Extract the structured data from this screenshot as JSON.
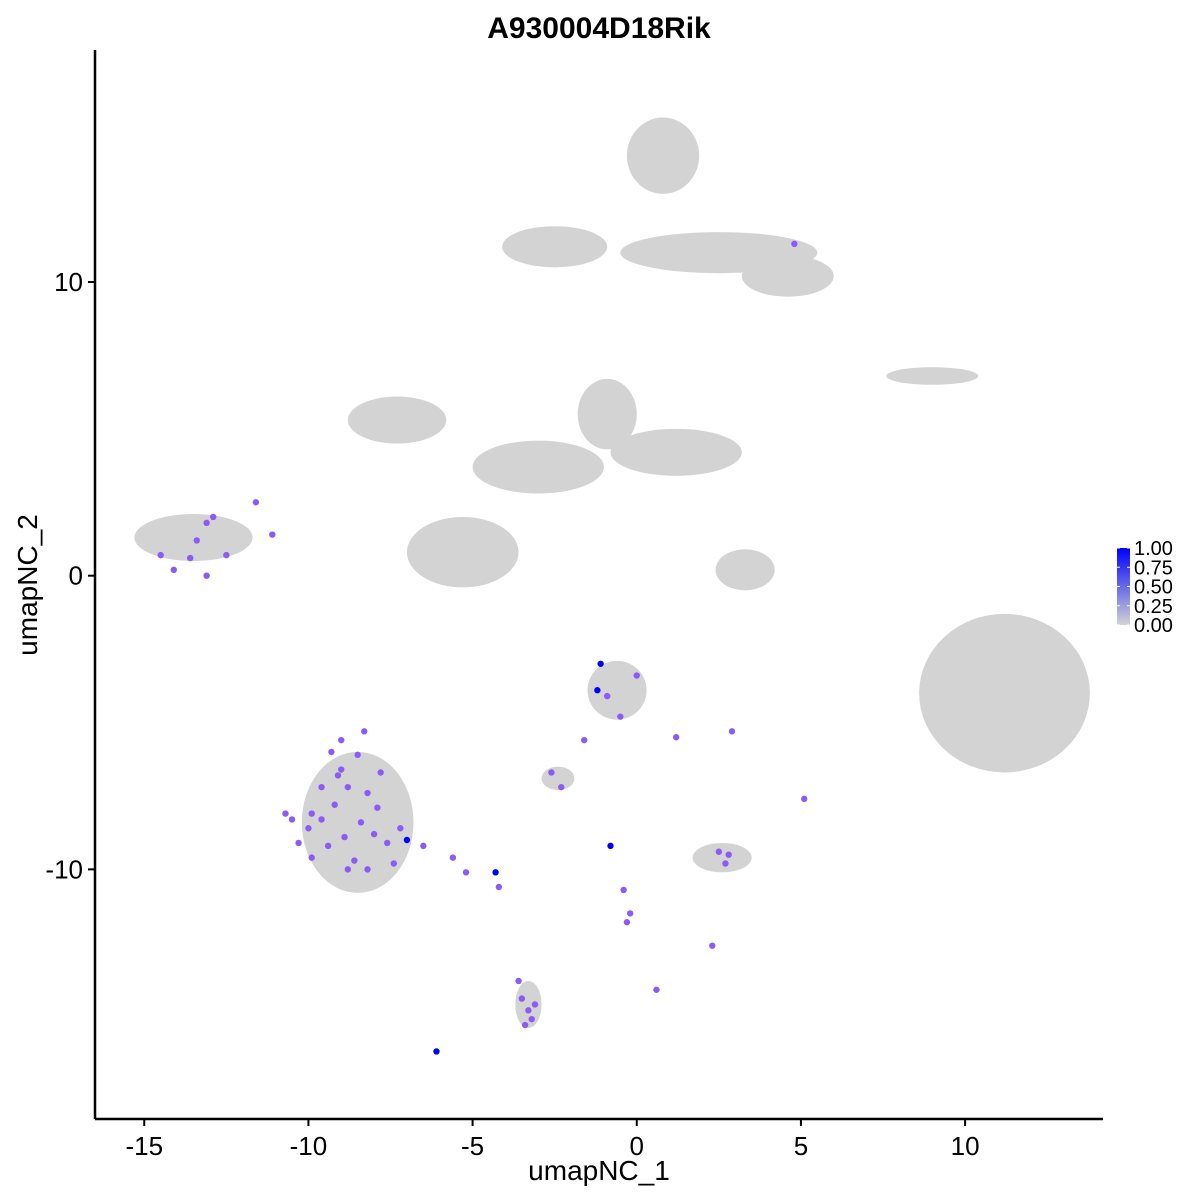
{
  "chart_data": {
    "type": "scatter",
    "title": "A930004D18Rik",
    "xlabel": "umapNC_1",
    "ylabel": "umapNC_2",
    "xlim": [
      -16.5,
      14.2
    ],
    "ylim": [
      -18.5,
      17.9
    ],
    "x_ticks": [
      -15,
      -10,
      -5,
      0,
      5,
      10
    ],
    "x_tick_labels": [
      "-15",
      "-10",
      "-5",
      "0",
      "5",
      "10"
    ],
    "y_ticks": [
      -10,
      0,
      10
    ],
    "y_tick_labels": [
      "-10",
      "0",
      "10"
    ],
    "grid": false,
    "legend": {
      "placement": "right",
      "type": "continuous",
      "labels": [
        "1.00",
        "0.75",
        "0.50",
        "0.25",
        "0.00"
      ],
      "values": [
        1.0,
        0.75,
        0.5,
        0.25,
        0.0
      ],
      "color_low": "#d3d3d3",
      "color_high": "#0000ff"
    },
    "colors": {
      "background_cells": "#d3d3d3",
      "expressing": "#8a5cf5",
      "high": "#0000ff"
    },
    "clusters": [
      {
        "cx": 0.8,
        "cy": 14.3,
        "rx": 1.1,
        "ry": 1.3
      },
      {
        "cx": 2.5,
        "cy": 11.0,
        "rx": 3.0,
        "ry": 0.7
      },
      {
        "cx": 4.6,
        "cy": 10.2,
        "rx": 1.4,
        "ry": 0.7
      },
      {
        "cx": -2.5,
        "cy": 11.2,
        "rx": 1.6,
        "ry": 0.7
      },
      {
        "cx": 9.0,
        "cy": 6.8,
        "rx": 1.4,
        "ry": 0.3
      },
      {
        "cx": -7.3,
        "cy": 5.3,
        "rx": 1.5,
        "ry": 0.8
      },
      {
        "cx": -0.9,
        "cy": 5.5,
        "rx": 0.9,
        "ry": 1.2
      },
      {
        "cx": 1.2,
        "cy": 4.2,
        "rx": 2.0,
        "ry": 0.8
      },
      {
        "cx": -3.0,
        "cy": 3.7,
        "rx": 2.0,
        "ry": 0.9
      },
      {
        "cx": -5.3,
        "cy": 0.8,
        "rx": 1.7,
        "ry": 1.2
      },
      {
        "cx": -13.5,
        "cy": 1.3,
        "rx": 1.8,
        "ry": 0.8
      },
      {
        "cx": 3.3,
        "cy": 0.2,
        "rx": 0.9,
        "ry": 0.7
      },
      {
        "cx": 11.2,
        "cy": -4.0,
        "rx": 2.6,
        "ry": 2.7
      },
      {
        "cx": -8.5,
        "cy": -8.4,
        "rx": 1.7,
        "ry": 2.4
      },
      {
        "cx": -0.6,
        "cy": -3.9,
        "rx": 0.9,
        "ry": 1.0
      },
      {
        "cx": -2.4,
        "cy": -6.9,
        "rx": 0.5,
        "ry": 0.4
      },
      {
        "cx": 2.6,
        "cy": -9.6,
        "rx": 0.9,
        "ry": 0.5
      },
      {
        "cx": -3.3,
        "cy": -14.6,
        "rx": 0.4,
        "ry": 0.8
      }
    ],
    "expressing_cells": [
      [
        -14.5,
        0.7,
        0.6
      ],
      [
        -14.1,
        0.2,
        0.6
      ],
      [
        -13.6,
        0.6,
        0.6
      ],
      [
        -13.4,
        1.2,
        0.6
      ],
      [
        -13.1,
        1.8,
        0.6
      ],
      [
        -12.9,
        2.0,
        0.6
      ],
      [
        -12.5,
        0.7,
        0.6
      ],
      [
        -13.1,
        0.0,
        0.6
      ],
      [
        -11.6,
        2.5,
        0.6
      ],
      [
        -11.1,
        1.4,
        0.6
      ],
      [
        -9.3,
        -6.0,
        0.6
      ],
      [
        -9.0,
        -6.6,
        0.6
      ],
      [
        -8.8,
        -7.2,
        0.6
      ],
      [
        -9.2,
        -7.8,
        0.6
      ],
      [
        -9.6,
        -8.3,
        0.6
      ],
      [
        -10.0,
        -8.6,
        0.6
      ],
      [
        -10.3,
        -9.1,
        0.6
      ],
      [
        -9.9,
        -9.6,
        0.6
      ],
      [
        -9.4,
        -9.2,
        0.6
      ],
      [
        -8.9,
        -8.9,
        0.6
      ],
      [
        -8.4,
        -8.4,
        0.6
      ],
      [
        -8.0,
        -8.8,
        0.6
      ],
      [
        -7.6,
        -9.1,
        0.6
      ],
      [
        -7.2,
        -8.6,
        0.6
      ],
      [
        -7.0,
        -9.0,
        0.9
      ],
      [
        -8.2,
        -7.4,
        0.6
      ],
      [
        -7.8,
        -6.7,
        0.6
      ],
      [
        -8.5,
        -6.1,
        0.6
      ],
      [
        -9.0,
        -5.6,
        0.6
      ],
      [
        -8.3,
        -5.3,
        0.6
      ],
      [
        -8.6,
        -9.7,
        0.6
      ],
      [
        -8.2,
        -10.0,
        0.6
      ],
      [
        -7.4,
        -9.8,
        0.6
      ],
      [
        -7.9,
        -7.9,
        0.6
      ],
      [
        -9.6,
        -7.2,
        0.6
      ],
      [
        -10.5,
        -8.3,
        0.6
      ],
      [
        -6.5,
        -9.2,
        0.6
      ],
      [
        -5.6,
        -9.6,
        0.6
      ],
      [
        -5.2,
        -10.1,
        0.6
      ],
      [
        -4.3,
        -10.1,
        0.9
      ],
      [
        -4.2,
        -10.6,
        0.6
      ],
      [
        -6.1,
        -16.2,
        0.9
      ],
      [
        -3.6,
        -13.8,
        0.6
      ],
      [
        -3.5,
        -14.4,
        0.6
      ],
      [
        -3.3,
        -14.8,
        0.6
      ],
      [
        -3.2,
        -15.1,
        0.6
      ],
      [
        -3.4,
        -15.3,
        0.6
      ],
      [
        -3.1,
        -14.6,
        0.6
      ],
      [
        -2.6,
        -6.7,
        0.6
      ],
      [
        -2.3,
        -7.2,
        0.6
      ],
      [
        -1.6,
        -5.6,
        0.6
      ],
      [
        -1.1,
        -3.0,
        0.9
      ],
      [
        -1.2,
        -3.9,
        0.9
      ],
      [
        -0.9,
        -4.1,
        0.6
      ],
      [
        -0.5,
        -4.8,
        0.6
      ],
      [
        0.0,
        -3.4,
        0.6
      ],
      [
        1.2,
        -5.5,
        0.6
      ],
      [
        -0.8,
        -9.2,
        0.9
      ],
      [
        -0.4,
        -10.7,
        0.6
      ],
      [
        -0.2,
        -11.5,
        0.6
      ],
      [
        -0.3,
        -11.8,
        0.6
      ],
      [
        0.6,
        -14.1,
        0.6
      ],
      [
        2.3,
        -12.6,
        0.6
      ],
      [
        2.5,
        -9.4,
        0.6
      ],
      [
        2.8,
        -9.5,
        0.6
      ],
      [
        2.7,
        -9.8,
        0.6
      ],
      [
        2.9,
        -5.3,
        0.6
      ],
      [
        5.1,
        -7.6,
        0.6
      ],
      [
        4.8,
        11.3,
        0.6
      ],
      [
        -10.7,
        -8.1,
        0.6
      ],
      [
        -9.9,
        -8.1,
        0.6
      ],
      [
        -9.1,
        -6.8,
        0.6
      ],
      [
        -8.8,
        -10.0,
        0.6
      ]
    ]
  }
}
